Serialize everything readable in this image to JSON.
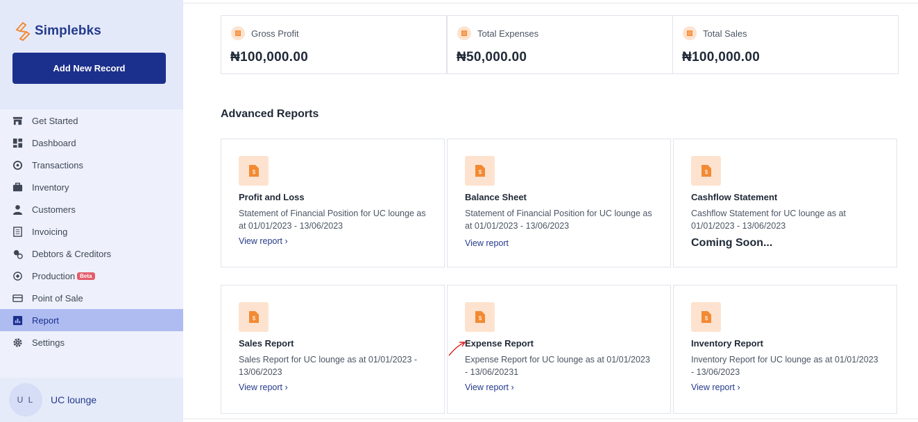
{
  "brand": {
    "name": "Simplebks"
  },
  "sidebar": {
    "add_button": "Add New Record",
    "items": [
      {
        "label": "Get Started",
        "icon": "store-icon"
      },
      {
        "label": "Dashboard",
        "icon": "dashboard-icon"
      },
      {
        "label": "Transactions",
        "icon": "transactions-icon"
      },
      {
        "label": "Inventory",
        "icon": "briefcase-icon"
      },
      {
        "label": "Customers",
        "icon": "person-icon"
      },
      {
        "label": "Invoicing",
        "icon": "receipt-icon"
      },
      {
        "label": "Debtors & Creditors",
        "icon": "debtors-icon"
      },
      {
        "label": "Production",
        "icon": "production-icon",
        "badge": "Beta"
      },
      {
        "label": "Point of Sale",
        "icon": "card-icon"
      },
      {
        "label": "Report",
        "icon": "report-icon",
        "active": true
      },
      {
        "label": "Settings",
        "icon": "gear-icon"
      }
    ],
    "user": {
      "initials": "U L",
      "name": "UC lounge"
    }
  },
  "stats": [
    {
      "label": "Gross Profit",
      "value": "₦100,000.00"
    },
    {
      "label": "Total Expenses",
      "value": "₦50,000.00"
    },
    {
      "label": "Total Sales",
      "value": "₦100,000.00"
    }
  ],
  "advanced": {
    "title": "Advanced Reports",
    "cards": [
      {
        "title": "Profit and Loss",
        "desc": "Statement of Financial Position for UC lounge as at 01/01/2023 - 13/06/2023",
        "link": "View report ›"
      },
      {
        "title": "Balance Sheet",
        "desc": "Statement of Financial Position for UC lounge as at 01/01/2023 - 13/06/2023",
        "link": "View report"
      },
      {
        "title": "Cashflow Statement",
        "desc": "Cashflow Statement for UC lounge as at 01/01/2023 - 13/06/2023",
        "coming": "Coming Soon..."
      },
      {
        "title": "Sales Report",
        "desc": "Sales Report for UC lounge as at 01/01/2023 - 13/06/2023",
        "link": "View report ›"
      },
      {
        "title": "Expense Report",
        "desc": "Expense Report for UC lounge as at 01/01/2023 - 13/06/20231",
        "link": "View report ›"
      },
      {
        "title": "Inventory Report",
        "desc": "Inventory Report for UC lounge as at 01/01/2023 - 13/06/2023",
        "link": "View report ›"
      }
    ]
  },
  "colors": {
    "brand": "#1b2f8c",
    "accent": "#f28a33",
    "active_nav": "#aebcf2",
    "beta": "#e45c6a"
  }
}
